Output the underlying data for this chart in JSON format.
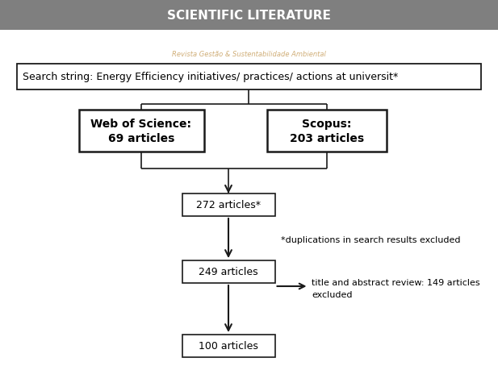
{
  "title": "SCIENTIFIC LITERATURE",
  "title_bg_color": "#7f7f7f",
  "title_text_color": "#ffffff",
  "search_string": "Search string: Energy Efficiency initiatives/ practices/ actions at universit*",
  "box_left_label": "Web of Science:\n69 articles",
  "box_right_label": "Scopus:\n203 articles",
  "box_272": "272 articles*",
  "box_249": "249 articles",
  "box_100": "100 articles",
  "note_272": "*duplications in search results excluded",
  "note_249_line1": "title and abstract review: 149 articles",
  "note_249_line2": "excluded",
  "watermark": "Revista Gestão & Sustentabilidade Ambiental",
  "bg_color": "#ffffff"
}
